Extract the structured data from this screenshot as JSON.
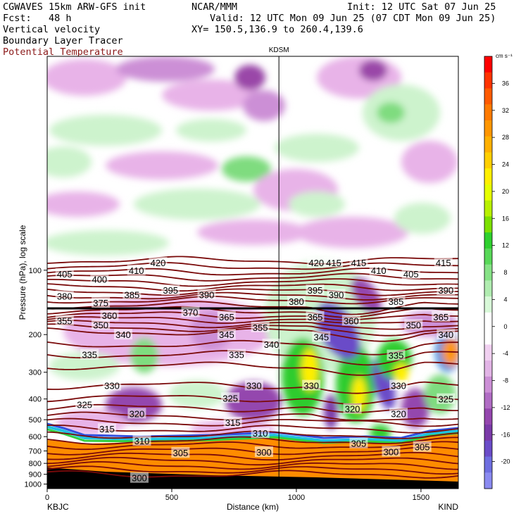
{
  "header": {
    "model": "CGWAVES 15km ARW-GFS init",
    "forecast": "Fcst:   48 h",
    "field1": "Vertical velocity",
    "field2": "Boundary Layer Tracer",
    "field3": "Potential Temperature",
    "org": "NCAR/MMM",
    "init": "Init: 12 UTC Sat 07 Jun 25",
    "valid": "Valid: 12 UTC Mon 09 Jun 25 (07 CDT Mon 09 Jun 25)",
    "xy": "XY= 150.5,136.9 to 260.4,139.6"
  },
  "colors": {
    "theta": "#7a0a0a",
    "title_red": "#8b1a1a",
    "terrain_orange": "#ff8c00",
    "pink": "#e8b3e8",
    "purple": "#9a46a8",
    "green": "#7fdc7f",
    "bright_green": "#2ecc2e"
  },
  "chart_data": {
    "type": "heatmap",
    "xlabel": "Distance (km)",
    "ylabel": "Pressure (hPa), log scale",
    "x_ticks": [
      0,
      500,
      1000,
      1500
    ],
    "xlim": [
      0,
      1650
    ],
    "y_ticks": [
      100,
      200,
      300,
      400,
      500,
      600,
      700,
      800,
      900,
      1000
    ],
    "y_scale": "log",
    "ylim": [
      1050,
      10
    ],
    "station_left": "KBJC",
    "station_right": "KIND",
    "station_mid": "KDSM",
    "station_mid_x": 930,
    "colorbar": {
      "unit": "cm s⁻¹",
      "labels": [
        36,
        32,
        28,
        24,
        20,
        16,
        12,
        8,
        4,
        0,
        -4,
        -8,
        -12,
        -16,
        -20
      ],
      "colors": [
        "#ff0000",
        "#ff3300",
        "#ff5a00",
        "#ff7a00",
        "#ff9600",
        "#ffb000",
        "#ffcf00",
        "#ffef00",
        "#e6ff00",
        "#b8f000",
        "#7ce000",
        "#2ed02e",
        "#58d858",
        "#86e286",
        "#b0ecb0",
        "#d8f8d8",
        "#ffffff",
        "#ffffff",
        "#f0d0f0",
        "#e2b4e6",
        "#cc8fd6",
        "#b06cc4",
        "#9446ae",
        "#7a3aa8",
        "#6a4cc8",
        "#6e6ee0",
        "#8a8af0"
      ]
    },
    "theta_labels": [
      {
        "v": "420",
        "x": 445,
        "p": 92
      },
      {
        "v": "410",
        "x": 358,
        "p": 100
      },
      {
        "v": "405",
        "x": 70,
        "p": 104
      },
      {
        "v": "400",
        "x": 210,
        "p": 110
      },
      {
        "v": "395",
        "x": 495,
        "p": 124
      },
      {
        "v": "390",
        "x": 640,
        "p": 130
      },
      {
        "v": "385",
        "x": 340,
        "p": 130
      },
      {
        "v": "380",
        "x": 70,
        "p": 132
      },
      {
        "v": "375",
        "x": 215,
        "p": 142
      },
      {
        "v": "370",
        "x": 575,
        "p": 157
      },
      {
        "v": "365",
        "x": 720,
        "p": 165
      },
      {
        "v": "360",
        "x": 250,
        "p": 163
      },
      {
        "v": "355",
        "x": 70,
        "p": 172
      },
      {
        "v": "350",
        "x": 215,
        "p": 180
      },
      {
        "v": "355",
        "x": 855,
        "p": 185
      },
      {
        "v": "345",
        "x": 720,
        "p": 200
      },
      {
        "v": "340",
        "x": 305,
        "p": 200
      },
      {
        "v": "340",
        "x": 900,
        "p": 222
      },
      {
        "v": "335",
        "x": 170,
        "p": 248
      },
      {
        "v": "335",
        "x": 760,
        "p": 248
      },
      {
        "v": "330",
        "x": 260,
        "p": 346
      },
      {
        "v": "330",
        "x": 830,
        "p": 346
      },
      {
        "v": "325",
        "x": 150,
        "p": 425
      },
      {
        "v": "325",
        "x": 735,
        "p": 396
      },
      {
        "v": "320",
        "x": 360,
        "p": 468
      },
      {
        "v": "315",
        "x": 240,
        "p": 552
      },
      {
        "v": "315",
        "x": 745,
        "p": 515
      },
      {
        "v": "310",
        "x": 380,
        "p": 627
      },
      {
        "v": "310",
        "x": 855,
        "p": 578
      },
      {
        "v": "305",
        "x": 535,
        "p": 714
      },
      {
        "v": "300",
        "x": 870,
        "p": 708
      },
      {
        "v": "300",
        "x": 370,
        "p": 935
      },
      {
        "v": "420",
        "x": 1080,
        "p": 92
      },
      {
        "v": "415",
        "x": 1150,
        "p": 92
      },
      {
        "v": "415",
        "x": 1250,
        "p": 92
      },
      {
        "v": "395",
        "x": 1075,
        "p": 124
      },
      {
        "v": "390",
        "x": 1160,
        "p": 130
      },
      {
        "v": "410",
        "x": 1330,
        "p": 100
      },
      {
        "v": "405",
        "x": 1460,
        "p": 104
      },
      {
        "v": "415",
        "x": 1590,
        "p": 92
      },
      {
        "v": "385",
        "x": 1400,
        "p": 140
      },
      {
        "v": "390",
        "x": 1600,
        "p": 124
      },
      {
        "v": "380",
        "x": 1000,
        "p": 140
      },
      {
        "v": "365",
        "x": 1075,
        "p": 165
      },
      {
        "v": "360",
        "x": 1220,
        "p": 172
      },
      {
        "v": "365",
        "x": 1580,
        "p": 165
      },
      {
        "v": "350",
        "x": 1470,
        "p": 180
      },
      {
        "v": "345",
        "x": 1100,
        "p": 205
      },
      {
        "v": "340",
        "x": 1600,
        "p": 200
      },
      {
        "v": "335",
        "x": 1400,
        "p": 250
      },
      {
        "v": "330",
        "x": 1060,
        "p": 346
      },
      {
        "v": "330",
        "x": 1410,
        "p": 346
      },
      {
        "v": "325",
        "x": 1600,
        "p": 400
      },
      {
        "v": "320",
        "x": 1225,
        "p": 445
      },
      {
        "v": "320",
        "x": 1410,
        "p": 468
      },
      {
        "v": "305",
        "x": 1250,
        "p": 645
      },
      {
        "v": "305",
        "x": 1505,
        "p": 670
      },
      {
        "v": "300",
        "x": 1380,
        "p": 705
      }
    ]
  }
}
